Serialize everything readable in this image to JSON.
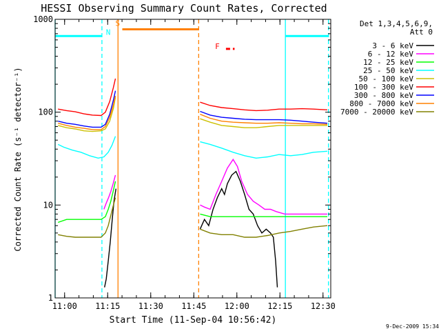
{
  "chart_data": {
    "type": "line",
    "title": "HESSI Observing Summary Count Rates, Corrected",
    "xlabel": "Start Time (11-Sep-04 10:56:42)",
    "ylabel": "Corrected Count Rate (s⁻¹ detector⁻¹)",
    "x_unit": "minutes after 11-Sep-04 10:56:42",
    "xlim": [
      0,
      96
    ],
    "ylim": [
      1,
      1000
    ],
    "y_scale": "log",
    "x_ticks": [
      {
        "label": "11:00",
        "x": 3.3
      },
      {
        "label": "11:15",
        "x": 18.3
      },
      {
        "label": "11:30",
        "x": 33.3
      },
      {
        "label": "11:45",
        "x": 48.3
      },
      {
        "label": "12:00",
        "x": 63.3
      },
      {
        "label": "12:15",
        "x": 78.3
      },
      {
        "label": "12:30",
        "x": 93.3
      }
    ],
    "y_ticks": [
      {
        "label": "1",
        "y": 1
      },
      {
        "label": "10",
        "y": 10
      },
      {
        "label": "100",
        "y": 100
      },
      {
        "label": "1000",
        "y": 1000
      }
    ],
    "legend": {
      "title_lines": [
        "Det 1,3,4,5,6,9,",
        "Att 0"
      ],
      "placement": "right"
    },
    "series": [
      {
        "name": "3 - 6 keV",
        "color": "#000000",
        "points": [
          [
            17.2,
            1.3
          ],
          [
            17.8,
            1.6
          ],
          [
            18.5,
            2.5
          ],
          [
            19.2,
            4
          ],
          [
            19.9,
            7
          ],
          [
            20.5,
            11
          ],
          [
            21.2,
            15
          ],
          [
            50.5,
            5.5
          ],
          [
            52,
            7
          ],
          [
            53.5,
            6
          ],
          [
            55,
            9
          ],
          [
            56.5,
            12
          ],
          [
            58,
            15
          ],
          [
            59,
            13
          ],
          [
            60,
            17
          ],
          [
            61.5,
            21
          ],
          [
            63,
            23
          ],
          [
            64.5,
            18
          ],
          [
            66,
            13
          ],
          [
            67.5,
            9
          ],
          [
            69,
            8
          ],
          [
            70.5,
            6
          ],
          [
            72,
            5
          ],
          [
            73.5,
            5.5
          ],
          [
            75,
            5
          ],
          [
            76,
            4.5
          ],
          [
            76.8,
            2.5
          ],
          [
            77.4,
            1.3
          ]
        ]
      },
      {
        "name": "6 - 12 keV",
        "color": "#ff00ff",
        "points": [
          [
            17,
            9
          ],
          [
            17.8,
            10.5
          ],
          [
            18.6,
            12
          ],
          [
            19.4,
            14
          ],
          [
            20.2,
            17
          ],
          [
            21,
            21
          ],
          [
            50.5,
            10
          ],
          [
            52,
            9.5
          ],
          [
            54,
            9
          ],
          [
            56,
            13
          ],
          [
            58,
            18
          ],
          [
            60,
            25
          ],
          [
            62,
            31
          ],
          [
            63.5,
            26
          ],
          [
            65,
            18
          ],
          [
            67,
            13
          ],
          [
            69,
            11
          ],
          [
            71,
            10
          ],
          [
            73,
            9
          ],
          [
            75,
            9
          ],
          [
            77,
            8.5
          ],
          [
            80,
            8
          ],
          [
            84,
            8
          ],
          [
            88,
            8
          ],
          [
            92,
            8
          ],
          [
            94.8,
            8
          ]
        ]
      },
      {
        "name": "12 - 25 keV",
        "color": "#00ff00",
        "points": [
          [
            1,
            6.5
          ],
          [
            4,
            7
          ],
          [
            7,
            7
          ],
          [
            10,
            7
          ],
          [
            13,
            7
          ],
          [
            16,
            7
          ],
          [
            17.5,
            7.5
          ],
          [
            18.5,
            9
          ],
          [
            19.4,
            11
          ],
          [
            20.2,
            14
          ],
          [
            21,
            18
          ],
          [
            50.5,
            8
          ],
          [
            54,
            7.5
          ],
          [
            58,
            7.5
          ],
          [
            62,
            7.5
          ],
          [
            66,
            7.5
          ],
          [
            70,
            7.5
          ],
          [
            74,
            7.5
          ],
          [
            78,
            7.5
          ],
          [
            82,
            7.5
          ],
          [
            86,
            7.5
          ],
          [
            90,
            7.5
          ],
          [
            94.8,
            7.5
          ]
        ]
      },
      {
        "name": "25 - 50 keV",
        "color": "#00ffff",
        "points": [
          [
            1,
            45
          ],
          [
            3,
            42
          ],
          [
            6,
            39
          ],
          [
            9,
            37
          ],
          [
            12,
            34
          ],
          [
            15,
            32
          ],
          [
            17,
            33
          ],
          [
            18.5,
            37
          ],
          [
            19.8,
            44
          ],
          [
            21,
            55
          ],
          [
            50.5,
            48
          ],
          [
            54,
            45
          ],
          [
            58,
            41
          ],
          [
            62,
            37
          ],
          [
            66,
            34
          ],
          [
            70,
            32
          ],
          [
            74,
            33
          ],
          [
            78,
            35
          ],
          [
            82,
            34
          ],
          [
            86,
            35
          ],
          [
            90,
            37
          ],
          [
            94.8,
            38
          ]
        ]
      },
      {
        "name": "50 - 100 keV",
        "color": "#ccc000",
        "points": [
          [
            1,
            72
          ],
          [
            4,
            68
          ],
          [
            7,
            66
          ],
          [
            10,
            63
          ],
          [
            13,
            62
          ],
          [
            16,
            63
          ],
          [
            17.5,
            66
          ],
          [
            19,
            80
          ],
          [
            20.3,
            110
          ],
          [
            21,
            145
          ],
          [
            50.5,
            85
          ],
          [
            54,
            78
          ],
          [
            58,
            72
          ],
          [
            62,
            70
          ],
          [
            66,
            68
          ],
          [
            70,
            68
          ],
          [
            74,
            70
          ],
          [
            78,
            72
          ],
          [
            82,
            72
          ],
          [
            86,
            72
          ],
          [
            90,
            72
          ],
          [
            94.8,
            72
          ]
        ]
      },
      {
        "name": "100 - 300 keV",
        "color": "#ff0000",
        "points": [
          [
            1,
            108
          ],
          [
            4,
            104
          ],
          [
            7,
            101
          ],
          [
            10,
            96
          ],
          [
            13,
            93
          ],
          [
            16,
            92
          ],
          [
            17.5,
            100
          ],
          [
            19,
            130
          ],
          [
            20.3,
            185
          ],
          [
            21,
            230
          ],
          [
            50.5,
            128
          ],
          [
            54,
            118
          ],
          [
            58,
            112
          ],
          [
            62,
            109
          ],
          [
            66,
            106
          ],
          [
            70,
            104
          ],
          [
            74,
            105
          ],
          [
            78,
            108
          ],
          [
            82,
            108
          ],
          [
            86,
            109
          ],
          [
            90,
            108
          ],
          [
            94.8,
            106
          ]
        ]
      },
      {
        "name": "300 - 800 keV",
        "color": "#0000ff",
        "points": [
          [
            1,
            80
          ],
          [
            4,
            76
          ],
          [
            7,
            74
          ],
          [
            10,
            71
          ],
          [
            13,
            69
          ],
          [
            16,
            69
          ],
          [
            17.5,
            74
          ],
          [
            19,
            95
          ],
          [
            20.3,
            135
          ],
          [
            21,
            170
          ],
          [
            50.5,
            102
          ],
          [
            54,
            93
          ],
          [
            58,
            88
          ],
          [
            62,
            86
          ],
          [
            66,
            84
          ],
          [
            70,
            83
          ],
          [
            74,
            83
          ],
          [
            78,
            83
          ],
          [
            82,
            82
          ],
          [
            86,
            80
          ],
          [
            90,
            78
          ],
          [
            94.8,
            76
          ]
        ]
      },
      {
        "name": "800 - 7000 keV",
        "color": "#ff8000",
        "points": [
          [
            1,
            76
          ],
          [
            4,
            72
          ],
          [
            7,
            69
          ],
          [
            10,
            67
          ],
          [
            13,
            65
          ],
          [
            16,
            65
          ],
          [
            17.5,
            70
          ],
          [
            19,
            88
          ],
          [
            20.3,
            120
          ],
          [
            21,
            150
          ],
          [
            50.5,
            95
          ],
          [
            54,
            86
          ],
          [
            58,
            80
          ],
          [
            62,
            78
          ],
          [
            66,
            77
          ],
          [
            70,
            76
          ],
          [
            74,
            76
          ],
          [
            78,
            77
          ],
          [
            82,
            76
          ],
          [
            86,
            75
          ],
          [
            90,
            75
          ],
          [
            94.8,
            74
          ]
        ]
      },
      {
        "name": "7000 - 20000 keV",
        "color": "#808000",
        "points": [
          [
            1,
            4.8
          ],
          [
            4,
            4.6
          ],
          [
            7,
            4.5
          ],
          [
            10,
            4.5
          ],
          [
            13,
            4.5
          ],
          [
            16,
            4.5
          ],
          [
            17.5,
            5
          ],
          [
            18.5,
            6
          ],
          [
            19.5,
            8
          ],
          [
            20.3,
            10
          ],
          [
            21,
            12
          ],
          [
            50.5,
            5.5
          ],
          [
            54,
            5
          ],
          [
            58,
            4.8
          ],
          [
            62,
            4.8
          ],
          [
            66,
            4.5
          ],
          [
            70,
            4.5
          ],
          [
            74,
            4.7
          ],
          [
            78,
            5
          ],
          [
            82,
            5.2
          ],
          [
            86,
            5.5
          ],
          [
            90,
            5.8
          ],
          [
            94.8,
            6
          ]
        ]
      }
    ],
    "annotations": [
      {
        "label": "N",
        "x": 18.5,
        "y": 680,
        "color": "#00ffff"
      },
      {
        "label": "S",
        "x": 21.8,
        "y": 850,
        "color": "#ff8000"
      },
      {
        "label": "F",
        "x": 56.5,
        "y": 480,
        "color": "#ff0000"
      }
    ],
    "bars": [
      {
        "x_start": 0,
        "x_end": 16.3,
        "y": 660,
        "color": "#00ffff"
      },
      {
        "x_start": 80.2,
        "x_end": 95.2,
        "y": 660,
        "color": "#00ffff"
      },
      {
        "x_start": 23.4,
        "x_end": 50.0,
        "y": 780,
        "color": "#ff8000"
      },
      {
        "x_start": 59.5,
        "x_end": 62.5,
        "y": 480,
        "color": "#ff0000"
      }
    ],
    "vlines": [
      {
        "x": 0,
        "color": "#00ffff",
        "dashed": false
      },
      {
        "x": 16.3,
        "color": "#00ffff",
        "dashed": true
      },
      {
        "x": 21.9,
        "color": "#ff8000",
        "dashed": false
      },
      {
        "x": 50.0,
        "color": "#ff8000",
        "dashed": true
      },
      {
        "x": 80.2,
        "color": "#00ffff",
        "dashed": false
      },
      {
        "x": 95.2,
        "color": "#00ffff",
        "dashed": true
      }
    ]
  },
  "footer": {
    "date_stamp": "9-Dec-2009 15:34"
  }
}
